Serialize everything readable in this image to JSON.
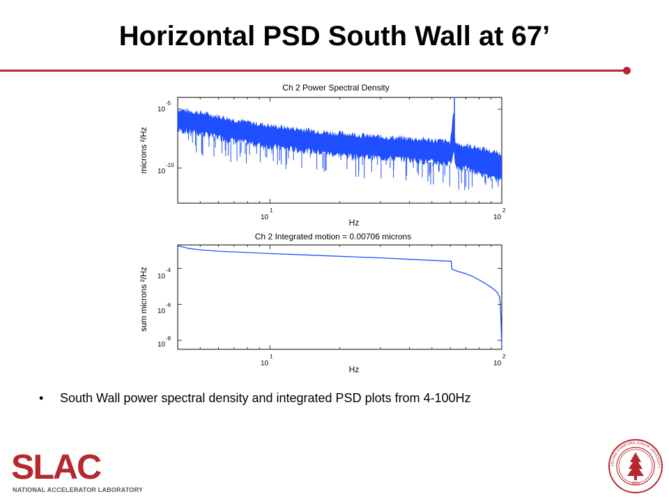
{
  "slide": {
    "title": "Horizontal PSD South Wall at 67’",
    "bullet": "South Wall power spectral density and integrated PSD plots from 4-100Hz",
    "bullet_marker": "•"
  },
  "logo": {
    "text": "SLAC",
    "subtitle": "NATIONAL ACCELERATOR LABORATORY"
  },
  "seal": {
    "text": "LELAND STANFORD JUNIOR UNIVERSITY",
    "year": "1891"
  },
  "colors": {
    "accent": "#b5282e",
    "series": "#1f4fff"
  },
  "chart_data": [
    {
      "type": "line",
      "title": "Ch 2  Power Spectral Density",
      "xlabel": "Hz",
      "ylabel": "microns ²/Hz",
      "xscale": "log",
      "yscale": "log",
      "xlim": [
        4,
        100
      ],
      "ylim_exp": [
        -13,
        -4
      ],
      "xticks": [
        {
          "base": "10",
          "exp": "1"
        },
        {
          "base": "10",
          "exp": "2"
        }
      ],
      "yticks": [
        {
          "base": "10",
          "exp": "-5"
        },
        {
          "base": "10",
          "exp": "-10"
        }
      ],
      "series": [
        {
          "x": [
            4,
            5,
            6,
            7,
            8,
            10,
            12,
            15,
            18,
            22,
            27,
            33,
            40,
            48,
            55,
            60,
            62,
            63,
            64,
            66,
            70,
            75,
            80,
            85,
            90,
            95,
            100
          ],
          "log10_y_upper": [
            -5.0,
            -5.3,
            -5.6,
            -5.9,
            -6.1,
            -6.4,
            -6.6,
            -6.8,
            -7.0,
            -7.1,
            -7.3,
            -7.4,
            -7.5,
            -7.6,
            -7.7,
            -7.8,
            -5.0,
            -7.8,
            -7.9,
            -8.0,
            -8.1,
            -8.2,
            -8.3,
            -8.4,
            -8.6,
            -8.7,
            -8.8
          ],
          "log10_y_lower": [
            -6.8,
            -7.1,
            -7.4,
            -7.7,
            -7.9,
            -8.2,
            -8.4,
            -8.6,
            -8.8,
            -9.0,
            -9.1,
            -9.2,
            -9.3,
            -9.5,
            -9.6,
            -9.7,
            -8.5,
            -9.8,
            -9.9,
            -10.0,
            -10.1,
            -10.3,
            -10.5,
            -10.7,
            -10.9,
            -11.0,
            -11.2
          ]
        }
      ]
    },
    {
      "type": "line",
      "title": "Ch 2  Integrated motion = 0.00706 microns",
      "xlabel": "Hz",
      "ylabel": "sum microns ²/Hz",
      "xscale": "log",
      "yscale": "log",
      "xlim": [
        4,
        100
      ],
      "ylim_exp": [
        -8.5,
        -2.7
      ],
      "xticks": [
        {
          "base": "10",
          "exp": "1"
        },
        {
          "base": "10",
          "exp": "2"
        }
      ],
      "yticks": [
        {
          "base": "10",
          "exp": "-4"
        },
        {
          "base": "10",
          "exp": "-6"
        },
        {
          "base": "10",
          "exp": "-8"
        }
      ],
      "series": [
        {
          "x": [
            4,
            4.5,
            5,
            6,
            8,
            10,
            15,
            20,
            30,
            40,
            50,
            59,
            60.5,
            61,
            64,
            70,
            75,
            80,
            85,
            90,
            95,
            98,
            99,
            100
          ],
          "log10_y": [
            -2.75,
            -2.9,
            -2.97,
            -3.05,
            -3.12,
            -3.18,
            -3.27,
            -3.33,
            -3.42,
            -3.5,
            -3.56,
            -3.6,
            -3.6,
            -4.05,
            -4.15,
            -4.3,
            -4.45,
            -4.65,
            -4.85,
            -5.05,
            -5.3,
            -5.6,
            -6.5,
            -8.3
          ]
        }
      ]
    }
  ]
}
